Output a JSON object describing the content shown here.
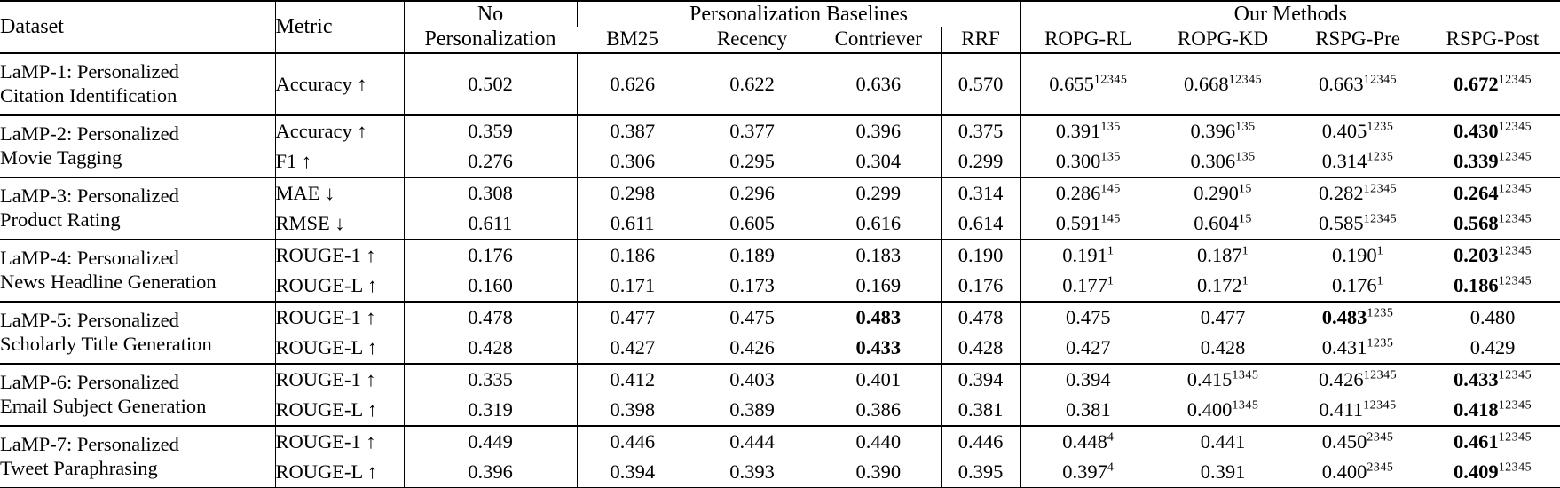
{
  "table": {
    "header": {
      "dataset": "Dataset",
      "metric": "Metric",
      "no_personalization_line1": "No",
      "no_personalization_line2": "Personalization",
      "baselines_group": "Personalization Baselines",
      "our_methods_group": "Our Methods",
      "baseline_cols": [
        "BM25",
        "Recency",
        "Contriever",
        "RRF"
      ],
      "our_method_cols": [
        "ROPG-RL",
        "ROPG-KD",
        "RSPG-Pre",
        "RSPG-Post"
      ]
    },
    "groups": [
      {
        "dataset_line1": "LaMP-1: Personalized",
        "dataset_line2": "Citation Identification",
        "rows": [
          {
            "metric": "Accuracy ↑",
            "cells": [
              {
                "v": "0.502"
              },
              {
                "v": "0.626"
              },
              {
                "v": "0.622"
              },
              {
                "v": "0.636"
              },
              {
                "v": "0.570"
              },
              {
                "v": "0.655",
                "sup": "12345"
              },
              {
                "v": "0.668",
                "sup": "12345"
              },
              {
                "v": "0.663",
                "sup": "12345"
              },
              {
                "v": "0.672",
                "sup": "12345",
                "b": true
              }
            ]
          }
        ]
      },
      {
        "dataset_line1": "LaMP-2: Personalized",
        "dataset_line2": "Movie Tagging",
        "rows": [
          {
            "metric": "Accuracy ↑",
            "cells": [
              {
                "v": "0.359"
              },
              {
                "v": "0.387"
              },
              {
                "v": "0.377"
              },
              {
                "v": "0.396"
              },
              {
                "v": "0.375"
              },
              {
                "v": "0.391",
                "sup": "135"
              },
              {
                "v": "0.396",
                "sup": "135"
              },
              {
                "v": "0.405",
                "sup": "1235"
              },
              {
                "v": "0.430",
                "sup": "12345",
                "b": true
              }
            ]
          },
          {
            "metric": "F1 ↑",
            "cells": [
              {
                "v": "0.276"
              },
              {
                "v": "0.306"
              },
              {
                "v": "0.295"
              },
              {
                "v": "0.304"
              },
              {
                "v": "0.299"
              },
              {
                "v": "0.300",
                "sup": "135"
              },
              {
                "v": "0.306",
                "sup": "135"
              },
              {
                "v": "0.314",
                "sup": "1235"
              },
              {
                "v": "0.339",
                "sup": "12345",
                "b": true
              }
            ]
          }
        ]
      },
      {
        "dataset_line1": "LaMP-3: Personalized",
        "dataset_line2": "Product Rating",
        "rows": [
          {
            "metric": "MAE ↓",
            "cells": [
              {
                "v": "0.308"
              },
              {
                "v": "0.298"
              },
              {
                "v": "0.296"
              },
              {
                "v": "0.299"
              },
              {
                "v": "0.314"
              },
              {
                "v": "0.286",
                "sup": "145"
              },
              {
                "v": "0.290",
                "sup": "15"
              },
              {
                "v": "0.282",
                "sup": "12345"
              },
              {
                "v": "0.264",
                "sup": "12345",
                "b": true
              }
            ]
          },
          {
            "metric": "RMSE ↓",
            "cells": [
              {
                "v": "0.611"
              },
              {
                "v": "0.611"
              },
              {
                "v": "0.605"
              },
              {
                "v": "0.616"
              },
              {
                "v": "0.614"
              },
              {
                "v": "0.591",
                "sup": "145"
              },
              {
                "v": "0.604",
                "sup": "15"
              },
              {
                "v": "0.585",
                "sup": "12345"
              },
              {
                "v": "0.568",
                "sup": "12345",
                "b": true
              }
            ]
          }
        ]
      },
      {
        "dataset_line1": "LaMP-4: Personalized",
        "dataset_line2": "News Headline Generation",
        "rows": [
          {
            "metric": "ROUGE-1 ↑",
            "cells": [
              {
                "v": "0.176"
              },
              {
                "v": "0.186"
              },
              {
                "v": "0.189"
              },
              {
                "v": "0.183"
              },
              {
                "v": "0.190"
              },
              {
                "v": "0.191",
                "sup": "1"
              },
              {
                "v": "0.187",
                "sup": "1"
              },
              {
                "v": "0.190",
                "sup": "1"
              },
              {
                "v": "0.203",
                "sup": "12345",
                "b": true
              }
            ]
          },
          {
            "metric": "ROUGE-L ↑",
            "cells": [
              {
                "v": "0.160"
              },
              {
                "v": "0.171"
              },
              {
                "v": "0.173"
              },
              {
                "v": "0.169"
              },
              {
                "v": "0.176"
              },
              {
                "v": "0.177",
                "sup": "1"
              },
              {
                "v": "0.172",
                "sup": "1"
              },
              {
                "v": "0.176",
                "sup": "1"
              },
              {
                "v": "0.186",
                "sup": "12345",
                "b": true
              }
            ]
          }
        ]
      },
      {
        "dataset_line1": "LaMP-5: Personalized",
        "dataset_line2": "Scholarly Title Generation",
        "rows": [
          {
            "metric": "ROUGE-1 ↑",
            "cells": [
              {
                "v": "0.478"
              },
              {
                "v": "0.477"
              },
              {
                "v": "0.475"
              },
              {
                "v": "0.483",
                "b": true
              },
              {
                "v": "0.478"
              },
              {
                "v": "0.475"
              },
              {
                "v": "0.477"
              },
              {
                "v": "0.483",
                "sup": "1235",
                "b": true
              },
              {
                "v": "0.480"
              }
            ]
          },
          {
            "metric": "ROUGE-L ↑",
            "cells": [
              {
                "v": "0.428"
              },
              {
                "v": "0.427"
              },
              {
                "v": "0.426"
              },
              {
                "v": "0.433",
                "b": true
              },
              {
                "v": "0.428"
              },
              {
                "v": "0.427"
              },
              {
                "v": "0.428"
              },
              {
                "v": "0.431",
                "sup": "1235"
              },
              {
                "v": "0.429"
              }
            ]
          }
        ]
      },
      {
        "dataset_line1": "LaMP-6: Personalized",
        "dataset_line2": "Email Subject Generation",
        "rows": [
          {
            "metric": "ROUGE-1 ↑",
            "cells": [
              {
                "v": "0.335"
              },
              {
                "v": "0.412"
              },
              {
                "v": "0.403"
              },
              {
                "v": "0.401"
              },
              {
                "v": "0.394"
              },
              {
                "v": "0.394"
              },
              {
                "v": "0.415",
                "sup": "1345"
              },
              {
                "v": "0.426",
                "sup": "12345"
              },
              {
                "v": "0.433",
                "sup": "12345",
                "b": true
              }
            ]
          },
          {
            "metric": "ROUGE-L ↑",
            "cells": [
              {
                "v": "0.319"
              },
              {
                "v": "0.398"
              },
              {
                "v": "0.389"
              },
              {
                "v": "0.386"
              },
              {
                "v": "0.381"
              },
              {
                "v": "0.381"
              },
              {
                "v": "0.400",
                "sup": "1345"
              },
              {
                "v": "0.411",
                "sup": "12345"
              },
              {
                "v": "0.418",
                "sup": "12345",
                "b": true
              }
            ]
          }
        ]
      },
      {
        "dataset_line1": "LaMP-7: Personalized",
        "dataset_line2": "Tweet Paraphrasing",
        "rows": [
          {
            "metric": "ROUGE-1 ↑",
            "cells": [
              {
                "v": "0.449"
              },
              {
                "v": "0.446"
              },
              {
                "v": "0.444"
              },
              {
                "v": "0.440"
              },
              {
                "v": "0.446"
              },
              {
                "v": "0.448",
                "sup": "4"
              },
              {
                "v": "0.441"
              },
              {
                "v": "0.450",
                "sup": "2345"
              },
              {
                "v": "0.461",
                "sup": "12345",
                "b": true
              }
            ]
          },
          {
            "metric": "ROUGE-L ↑",
            "cells": [
              {
                "v": "0.396"
              },
              {
                "v": "0.394"
              },
              {
                "v": "0.393"
              },
              {
                "v": "0.390"
              },
              {
                "v": "0.395"
              },
              {
                "v": "0.397",
                "sup": "4"
              },
              {
                "v": "0.391"
              },
              {
                "v": "0.400",
                "sup": "2345"
              },
              {
                "v": "0.409",
                "sup": "12345",
                "b": true
              }
            ]
          }
        ]
      }
    ]
  }
}
